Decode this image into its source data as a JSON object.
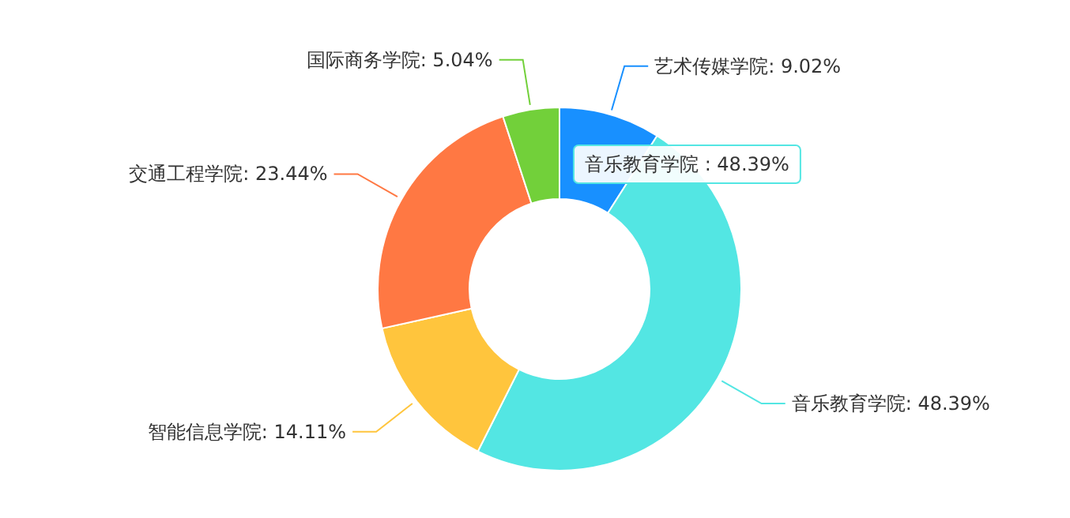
{
  "chart_data": {
    "type": "donut",
    "categories": [
      "艺术传媒学院",
      "音乐教育学院",
      "智能信息学院",
      "交通工程学院",
      "国际商务学院"
    ],
    "values": [
      9.02,
      48.39,
      14.11,
      23.44,
      5.04
    ],
    "colors": [
      "#1890ff",
      "#53e6e3",
      "#ffc53d",
      "#ff7843",
      "#72d03a"
    ],
    "value_labels": [
      ": 9.02%",
      ": 48.39%",
      ": 14.11%",
      ": 23.44%",
      ": 5.04%"
    ],
    "annotations": [
      "音乐教育学院 : 48.39%"
    ]
  }
}
